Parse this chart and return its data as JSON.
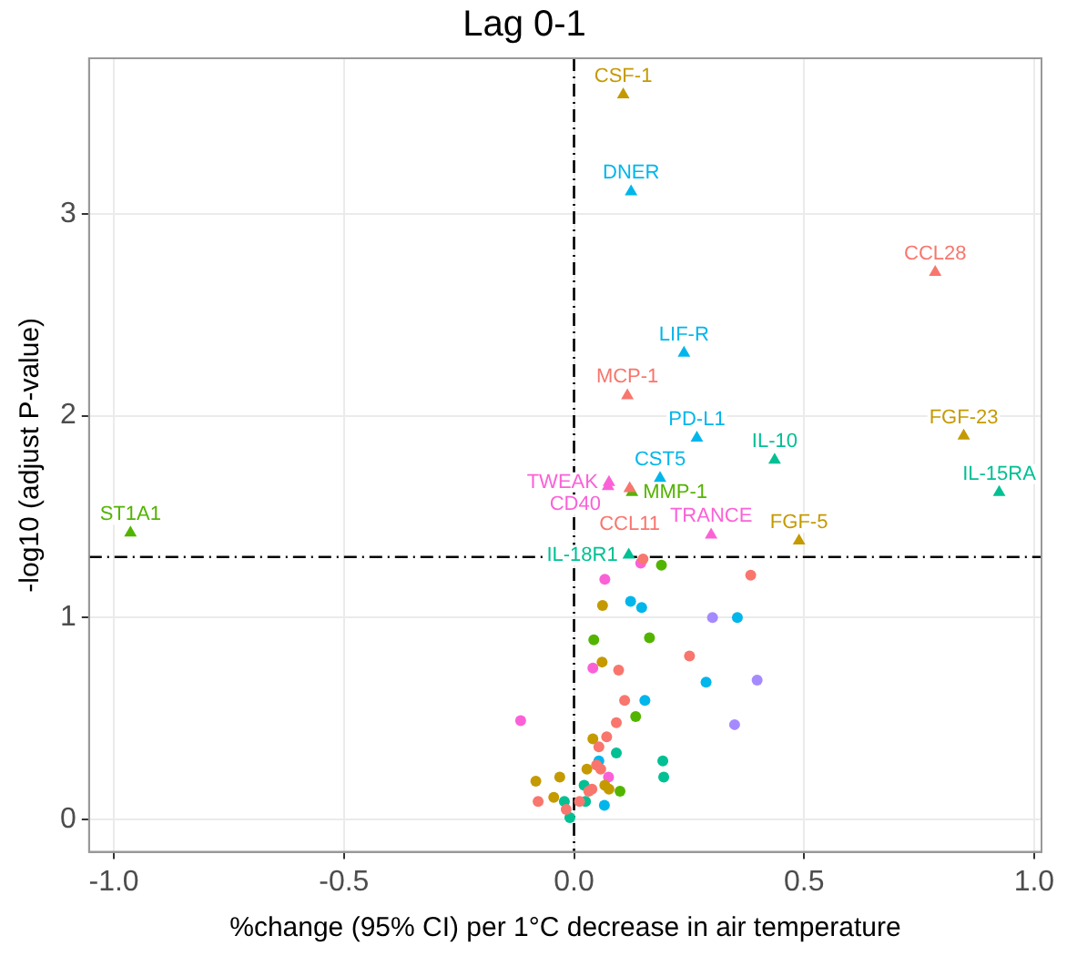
{
  "chart_data": {
    "type": "scatter",
    "title": "Lag 0-1",
    "xlabel": "%change (95% CI) per 1°C decrease in air temperature",
    "ylabel": "-log10 (adjust P-value)",
    "xlim": [
      -1.054,
      1.016
    ],
    "ylim": [
      -0.16,
      3.77
    ],
    "xticks": [
      {
        "value": -1,
        "label": "-1.0"
      },
      {
        "value": -0.5,
        "label": "-0.5"
      },
      {
        "value": 0,
        "label": "0.0"
      },
      {
        "value": 0.5,
        "label": "0.5"
      },
      {
        "value": 1,
        "label": "1.0"
      }
    ],
    "yticks": [
      0,
      1,
      2,
      3
    ],
    "grid": true,
    "legend": false,
    "ref_lines": [
      {
        "axis": "x",
        "value": 0,
        "color": "#000000",
        "line_style": "dashed"
      },
      {
        "axis": "y",
        "value": 1.3,
        "color": "#000000",
        "line_style": "dashed"
      }
    ],
    "series": [
      {
        "color": "#F8766D",
        "marker": "triangle",
        "x": [
          0.785,
          0.116,
          0.121
        ],
        "values": [
          2.71,
          2.1,
          1.64
        ]
      },
      {
        "color": "#C49A00",
        "marker": "triangle",
        "x": [
          0.107,
          0.847,
          0.489
        ],
        "values": [
          3.59,
          1.9,
          1.38
        ]
      },
      {
        "color": "#53B400",
        "marker": "triangle",
        "x": [
          0.126,
          -0.964
        ],
        "values": [
          1.62,
          1.42
        ]
      },
      {
        "color": "#00C094",
        "marker": "triangle",
        "x": [
          0.436,
          0.924,
          0.119
        ],
        "values": [
          1.78,
          1.62,
          1.31
        ]
      },
      {
        "color": "#00B6EB",
        "marker": "triangle",
        "x": [
          0.124,
          0.239,
          0.267,
          0.187
        ],
        "values": [
          3.11,
          2.31,
          1.89,
          1.69
        ]
      },
      {
        "color": "#FB61D7",
        "marker": "triangle",
        "x": [
          0.076,
          0.074,
          0.298
        ],
        "values": [
          1.67,
          1.65,
          1.41
        ]
      },
      {
        "color": "#F8766D",
        "marker": "circle",
        "x": [
          0.15,
          0.384,
          0.251,
          0.097,
          0.11,
          0.092,
          0.071,
          0.054,
          0.049,
          0.058,
          0.039,
          0.032,
          -0.078,
          0.012,
          -0.017
        ],
        "values": [
          1.29,
          1.21,
          0.81,
          0.74,
          0.59,
          0.48,
          0.41,
          0.36,
          0.27,
          0.25,
          0.15,
          0.14,
          0.09,
          0.09,
          0.05
        ]
      },
      {
        "color": "#C49A00",
        "marker": "circle",
        "x": [
          0.062,
          0.061,
          0.041,
          0.028,
          -0.083,
          -0.031,
          0.067,
          0.076,
          -0.044
        ],
        "values": [
          1.06,
          0.78,
          0.4,
          0.25,
          0.19,
          0.21,
          0.17,
          0.15,
          0.11
        ]
      },
      {
        "color": "#53B400",
        "marker": "circle",
        "x": [
          0.19,
          0.043,
          0.164,
          0.134,
          0.1
        ],
        "values": [
          1.26,
          0.89,
          0.9,
          0.51,
          0.14
        ]
      },
      {
        "color": "#00C094",
        "marker": "circle",
        "x": [
          0.092,
          0.193,
          0.195,
          0.022,
          -0.021,
          0.025,
          -0.009
        ],
        "values": [
          0.33,
          0.29,
          0.21,
          0.17,
          0.09,
          0.09,
          0.01
        ]
      },
      {
        "color": "#00B6EB",
        "marker": "circle",
        "x": [
          0.123,
          0.147,
          0.355,
          0.287,
          0.154,
          0.054,
          0.066
        ],
        "values": [
          1.08,
          1.05,
          1.0,
          0.68,
          0.59,
          0.29,
          0.07
        ]
      },
      {
        "color": "#A58AFF",
        "marker": "circle",
        "x": [
          0.301,
          0.398,
          0.349
        ],
        "values": [
          1.0,
          0.69,
          0.47
        ]
      },
      {
        "color": "#FB61D7",
        "marker": "circle",
        "x": [
          0.145,
          0.067,
          0.041,
          -0.116,
          0.075
        ],
        "values": [
          1.27,
          1.19,
          0.75,
          0.49,
          0.21
        ]
      }
    ],
    "annotations": [
      {
        "text": "CSF-1",
        "x": 0.107,
        "y": 3.59
      },
      {
        "text": "DNER",
        "x": 0.124,
        "y": 3.11
      },
      {
        "text": "CCL28",
        "x": 0.785,
        "y": 2.71
      },
      {
        "text": "LIF-R",
        "x": 0.239,
        "y": 2.31
      },
      {
        "text": "MCP-1",
        "x": 0.116,
        "y": 2.1
      },
      {
        "text": "FGF-23",
        "x": 0.847,
        "y": 1.9
      },
      {
        "text": "PD-L1",
        "x": 0.267,
        "y": 1.89
      },
      {
        "text": "IL-10",
        "x": 0.436,
        "y": 1.78
      },
      {
        "text": "CST5",
        "x": 0.187,
        "y": 1.69
      },
      {
        "text": "IL-15RA",
        "x": 0.924,
        "y": 1.62
      },
      {
        "text": "TWEAK",
        "x": 0.076,
        "y": 1.67
      },
      {
        "text": "CD40",
        "x": 0.074,
        "y": 1.65
      },
      {
        "text": "MMP-1",
        "x": 0.126,
        "y": 1.62
      },
      {
        "text": "CCL11",
        "x": 0.121,
        "y": 1.64
      },
      {
        "text": "TRANCE",
        "x": 0.298,
        "y": 1.41
      },
      {
        "text": "FGF-5",
        "x": 0.489,
        "y": 1.38
      },
      {
        "text": "ST1A1",
        "x": -0.964,
        "y": 1.42
      },
      {
        "text": "IL-18R1",
        "x": 0.119,
        "y": 1.31
      }
    ]
  }
}
